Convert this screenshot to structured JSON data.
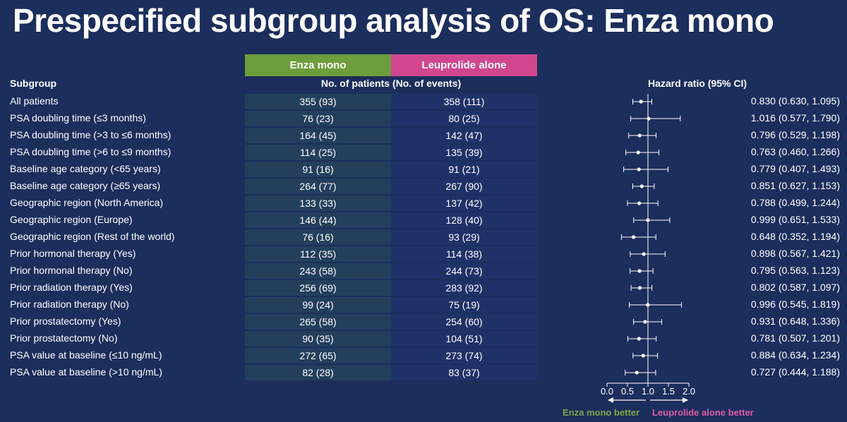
{
  "title": "Prespecified subgroup analysis of OS: Enza mono",
  "headers": {
    "enza": "Enza mono",
    "leuprolide": "Leuprolide alone",
    "subgroup": "Subgroup",
    "patients": "No. of patients (No. of events)",
    "hazard_ratio": "Hazard ratio (95% CI)"
  },
  "rows": [
    {
      "name": "All patients",
      "enza": "355 (93)",
      "leup": "358 (111)",
      "hr_text": "0.830 (0.630, 1.095)"
    },
    {
      "name": "PSA doubling time (≤3 months)",
      "enza": "76 (23)",
      "leup": "80 (25)",
      "hr_text": "1.016 (0.577, 1.790)"
    },
    {
      "name": "PSA doubling time (>3 to ≤6 months)",
      "enza": "164 (45)",
      "leup": "142 (47)",
      "hr_text": "0.796 (0.529, 1.198)"
    },
    {
      "name": "PSA doubling time (>6 to ≤9 months)",
      "enza": "114 (25)",
      "leup": "135 (39)",
      "hr_text": "0.763 (0.460, 1.266)"
    },
    {
      "name": "Baseline age category (<65 years)",
      "enza": "91 (16)",
      "leup": "91 (21)",
      "hr_text": "0.779 (0.407, 1.493)"
    },
    {
      "name": "Baseline age category (≥65 years)",
      "enza": "264 (77)",
      "leup": "267 (90)",
      "hr_text": "0.851 (0.627, 1.153)"
    },
    {
      "name": "Geographic region (North America)",
      "enza": "133 (33)",
      "leup": "137 (42)",
      "hr_text": "0.788 (0.499, 1.244)"
    },
    {
      "name": "Geographic region (Europe)",
      "enza": "146 (44)",
      "leup": "128 (40)",
      "hr_text": "0.999 (0.651, 1.533)"
    },
    {
      "name": "Geographic region (Rest of the world)",
      "enza": "76 (16)",
      "leup": "93 (29)",
      "hr_text": "0.648 (0.352, 1.194)"
    },
    {
      "name": "Prior hormonal therapy (Yes)",
      "enza": "112 (35)",
      "leup": "114 (38)",
      "hr_text": "0.898 (0.567, 1.421)"
    },
    {
      "name": "Prior hormonal therapy (No)",
      "enza": "243 (58)",
      "leup": "244 (73)",
      "hr_text": "0.795 (0.563, 1.123)"
    },
    {
      "name": "Prior radiation therapy (Yes)",
      "enza": "256 (69)",
      "leup": "283 (92)",
      "hr_text": "0.802 (0.587, 1.097)"
    },
    {
      "name": "Prior radiation therapy (No)",
      "enza": "99 (24)",
      "leup": "75 (19)",
      "hr_text": "0.996 (0.545, 1.819)"
    },
    {
      "name": "Prior prostatectomy (Yes)",
      "enza": "265 (58)",
      "leup": "254 (60)",
      "hr_text": "0.931 (0.648, 1.336)"
    },
    {
      "name": "Prior prostatectomy (No)",
      "enza": "90 (35)",
      "leup": "104 (51)",
      "hr_text": "0.781 (0.507, 1.201)"
    },
    {
      "name": "PSA value at baseline (≤10 ng/mL)",
      "enza": "272 (65)",
      "leup": "273 (74)",
      "hr_text": "0.884 (0.634, 1.234)"
    },
    {
      "name": "PSA value at baseline (>10 ng/mL)",
      "enza": "82 (28)",
      "leup": "83 (37)",
      "hr_text": "0.727 (0.444, 1.188)"
    }
  ],
  "legend": {
    "left": "Enza mono better",
    "right": "Leuprolide alone better",
    "left_color": "#7aa846",
    "right_color": "#e05aa2"
  },
  "colors": {
    "background": "#1b2e5c",
    "enza_header": "#6e9d3c",
    "leuprolide_header": "#d0468f"
  },
  "chart_data": {
    "type": "forest",
    "x_scale": "linear",
    "xlim": [
      0.0,
      2.0
    ],
    "reference_line": 1.0,
    "ticks": [
      "0.0",
      "0.5",
      "1.0",
      "1.5",
      "2.0"
    ],
    "xlabel": "Hazard ratio (95% CI)",
    "categories": [
      "All patients",
      "PSA doubling time (≤3 months)",
      "PSA doubling time (>3 to ≤6 months)",
      "PSA doubling time (>6 to ≤9 months)",
      "Baseline age category (<65 years)",
      "Baseline age category (≥65 years)",
      "Geographic region (North America)",
      "Geographic region (Europe)",
      "Geographic region (Rest of the world)",
      "Prior hormonal therapy (Yes)",
      "Prior hormonal therapy (No)",
      "Prior radiation therapy (Yes)",
      "Prior radiation therapy (No)",
      "Prior prostatectomy (Yes)",
      "Prior prostatectomy (No)",
      "PSA value at baseline (≤10 ng/mL)",
      "PSA value at baseline (>10 ng/mL)"
    ],
    "hr": [
      0.83,
      1.016,
      0.796,
      0.763,
      0.779,
      0.851,
      0.788,
      0.999,
      0.648,
      0.898,
      0.795,
      0.802,
      0.996,
      0.931,
      0.781,
      0.884,
      0.727
    ],
    "lower": [
      0.63,
      0.577,
      0.529,
      0.46,
      0.407,
      0.627,
      0.499,
      0.651,
      0.352,
      0.567,
      0.563,
      0.587,
      0.545,
      0.648,
      0.507,
      0.634,
      0.444
    ],
    "upper": [
      1.095,
      1.79,
      1.198,
      1.266,
      1.493,
      1.153,
      1.244,
      1.533,
      1.194,
      1.421,
      1.123,
      1.097,
      1.819,
      1.336,
      1.201,
      1.234,
      1.188
    ]
  }
}
